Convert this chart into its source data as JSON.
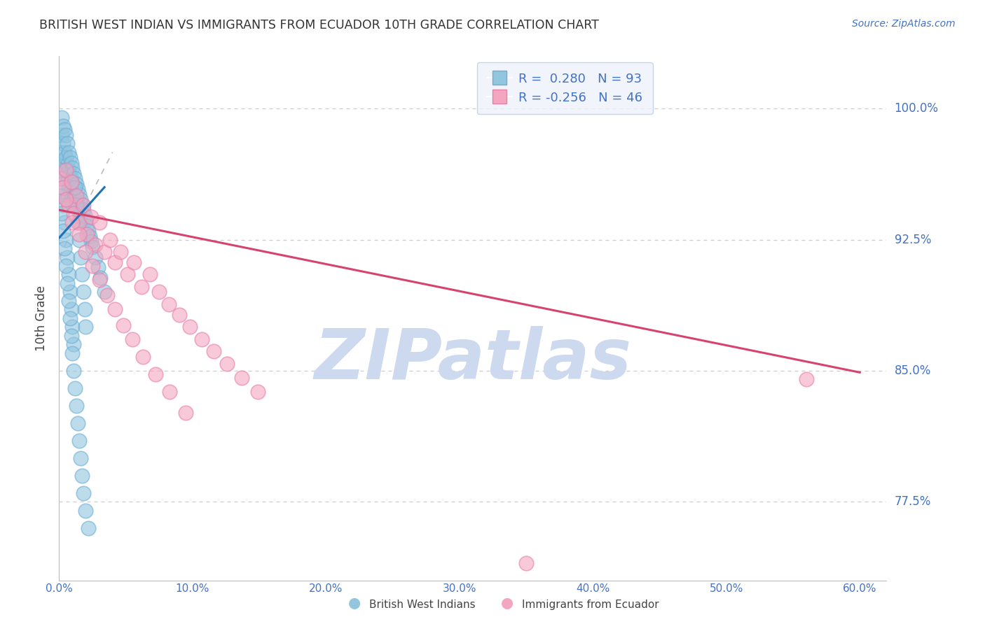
{
  "title": "BRITISH WEST INDIAN VS IMMIGRANTS FROM ECUADOR 10TH GRADE CORRELATION CHART",
  "source": "Source: ZipAtlas.com",
  "xlabel_ticks": [
    "0.0%",
    "10.0%",
    "20.0%",
    "30.0%",
    "40.0%",
    "50.0%",
    "60.0%"
  ],
  "xlabel_vals": [
    0.0,
    0.1,
    0.2,
    0.3,
    0.4,
    0.5,
    0.6
  ],
  "ylabel": "10th Grade",
  "ylabel_ticks": [
    "77.5%",
    "85.0%",
    "92.5%",
    "100.0%"
  ],
  "ylabel_vals": [
    0.775,
    0.85,
    0.925,
    1.0
  ],
  "xlim": [
    0.0,
    0.62
  ],
  "ylim": [
    0.73,
    1.03
  ],
  "blue_R": 0.28,
  "blue_N": 93,
  "pink_R": -0.256,
  "pink_N": 46,
  "blue_color": "#92c5de",
  "pink_color": "#f4a6be",
  "blue_edge_color": "#6baed6",
  "pink_edge_color": "#e87faa",
  "blue_line_color": "#2171b5",
  "pink_line_color": "#d6436e",
  "dashed_line_color": "#bbbbbb",
  "grid_color": "#cccccc",
  "axis_label_color": "#4472c4",
  "title_color": "#333333",
  "watermark_text": "ZIPatlas",
  "watermark_color": "#ccd9ee",
  "legend_box_facecolor": "#eef2fb",
  "legend_box_edgecolor": "#b8cce8",
  "blue_scatter_x": [
    0.001,
    0.002,
    0.002,
    0.003,
    0.003,
    0.003,
    0.004,
    0.004,
    0.004,
    0.005,
    0.005,
    0.005,
    0.006,
    0.006,
    0.006,
    0.006,
    0.007,
    0.007,
    0.007,
    0.008,
    0.008,
    0.008,
    0.009,
    0.009,
    0.009,
    0.01,
    0.01,
    0.01,
    0.011,
    0.011,
    0.012,
    0.012,
    0.013,
    0.013,
    0.014,
    0.014,
    0.015,
    0.015,
    0.016,
    0.016,
    0.017,
    0.018,
    0.019,
    0.02,
    0.021,
    0.022,
    0.023,
    0.024,
    0.025,
    0.027,
    0.029,
    0.031,
    0.034,
    0.001,
    0.002,
    0.003,
    0.004,
    0.005,
    0.006,
    0.007,
    0.008,
    0.009,
    0.01,
    0.011,
    0.012,
    0.013,
    0.014,
    0.015,
    0.016,
    0.017,
    0.018,
    0.019,
    0.02,
    0.001,
    0.002,
    0.003,
    0.004,
    0.005,
    0.006,
    0.007,
    0.008,
    0.009,
    0.01,
    0.011,
    0.012,
    0.013,
    0.014,
    0.015,
    0.016,
    0.017,
    0.018,
    0.02,
    0.022
  ],
  "blue_scatter_y": [
    0.975,
    0.995,
    0.985,
    0.99,
    0.98,
    0.97,
    0.988,
    0.975,
    0.965,
    0.985,
    0.972,
    0.962,
    0.98,
    0.968,
    0.958,
    0.948,
    0.975,
    0.965,
    0.955,
    0.972,
    0.962,
    0.952,
    0.969,
    0.959,
    0.948,
    0.966,
    0.956,
    0.946,
    0.963,
    0.952,
    0.96,
    0.95,
    0.957,
    0.947,
    0.954,
    0.944,
    0.951,
    0.941,
    0.948,
    0.938,
    0.945,
    0.942,
    0.939,
    0.936,
    0.933,
    0.93,
    0.927,
    0.924,
    0.921,
    0.915,
    0.909,
    0.903,
    0.895,
    0.965,
    0.955,
    0.945,
    0.935,
    0.925,
    0.915,
    0.905,
    0.895,
    0.885,
    0.875,
    0.865,
    0.955,
    0.945,
    0.935,
    0.925,
    0.915,
    0.905,
    0.895,
    0.885,
    0.875,
    0.95,
    0.94,
    0.93,
    0.92,
    0.91,
    0.9,
    0.89,
    0.88,
    0.87,
    0.86,
    0.85,
    0.84,
    0.83,
    0.82,
    0.81,
    0.8,
    0.79,
    0.78,
    0.77,
    0.76
  ],
  "pink_scatter_x": [
    0.001,
    0.003,
    0.005,
    0.007,
    0.009,
    0.011,
    0.013,
    0.015,
    0.018,
    0.021,
    0.024,
    0.027,
    0.03,
    0.034,
    0.038,
    0.042,
    0.046,
    0.051,
    0.056,
    0.062,
    0.068,
    0.075,
    0.082,
    0.09,
    0.098,
    0.107,
    0.116,
    0.126,
    0.137,
    0.149,
    0.005,
    0.01,
    0.015,
    0.02,
    0.025,
    0.03,
    0.036,
    0.042,
    0.048,
    0.055,
    0.063,
    0.072,
    0.083,
    0.095,
    0.35,
    0.56
  ],
  "pink_scatter_y": [
    0.96,
    0.955,
    0.965,
    0.945,
    0.958,
    0.94,
    0.95,
    0.935,
    0.945,
    0.928,
    0.938,
    0.922,
    0.935,
    0.918,
    0.925,
    0.912,
    0.918,
    0.905,
    0.912,
    0.898,
    0.905,
    0.895,
    0.888,
    0.882,
    0.875,
    0.868,
    0.861,
    0.854,
    0.846,
    0.838,
    0.948,
    0.935,
    0.928,
    0.918,
    0.91,
    0.902,
    0.893,
    0.885,
    0.876,
    0.868,
    0.858,
    0.848,
    0.838,
    0.826,
    0.74,
    0.845
  ],
  "blue_line_x": [
    0.0,
    0.034
  ],
  "blue_line_y": [
    0.926,
    0.955
  ],
  "pink_line_x": [
    0.0,
    0.6
  ],
  "pink_line_y": [
    0.942,
    0.849
  ],
  "dashed_line_x": [
    0.0,
    0.04
  ],
  "dashed_line_y": [
    0.915,
    0.975
  ]
}
